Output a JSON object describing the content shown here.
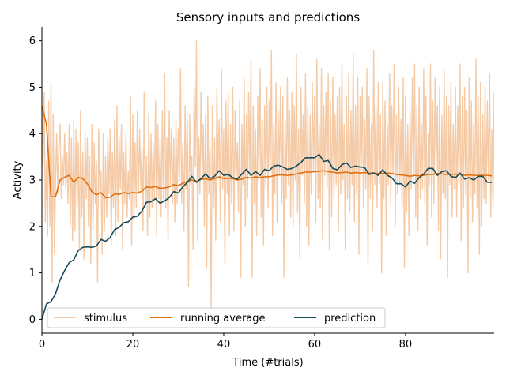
{
  "chart_data": {
    "type": "line",
    "title": "Sensory inputs and predictions",
    "xlabel": "Time (#trials)",
    "ylabel": "Activity",
    "xlim": [
      0,
      99.5
    ],
    "ylim": [
      -0.3,
      6.3
    ],
    "x_ticks": [
      0,
      20,
      40,
      60,
      80
    ],
    "y_ticks": [
      0,
      1,
      2,
      3,
      4,
      5,
      6
    ],
    "grid": false,
    "legend_position": "bottom",
    "series": [
      {
        "name": "stimulus",
        "color": "#f5cba7",
        "samples_per_trial": 4,
        "values": [
          4.6,
          3.3,
          4.9,
          2.1,
          3.4,
          1.8,
          4.7,
          2.0,
          5.1,
          0.8,
          4.4,
          1.4,
          3.0,
          4.0,
          2.7,
          3.8,
          4.2,
          2.6,
          3.5,
          2.9,
          4.0,
          2.8,
          3.6,
          2.5,
          4.2,
          2.0,
          3.9,
          1.7,
          4.3,
          1.9,
          4.1,
          2.4,
          3.8,
          1.5,
          4.5,
          2.2,
          3.6,
          1.3,
          4.0,
          2.6,
          3.9,
          2.0,
          3.5,
          1.2,
          4.2,
          1.9,
          3.8,
          2.5,
          3.4,
          0.8,
          4.1,
          2.7,
          3.2,
          1.4,
          4.0,
          1.9,
          3.5,
          2.2,
          3.9,
          2.7,
          4.1,
          1.6,
          3.6,
          2.4,
          4.3,
          1.8,
          4.6,
          2.1,
          3.9,
          2.8,
          4.2,
          1.5,
          3.6,
          2.5,
          4.0,
          2.2,
          3.2,
          2.6,
          4.8,
          1.6,
          4.4,
          2.1,
          3.8,
          2.4,
          4.5,
          2.7,
          4.1,
          2.8,
          3.7,
          1.9,
          4.9,
          2.4,
          3.5,
          1.8,
          4.4,
          2.2,
          4.0,
          2.4,
          3.8,
          2.6,
          4.7,
          1.8,
          4.2,
          2.6,
          3.9,
          2.2,
          4.5,
          2.6,
          5.3,
          2.4,
          3.9,
          1.7,
          4.5,
          2.9,
          4.1,
          2.5,
          3.9,
          2.1,
          4.3,
          2.5,
          4.1,
          3.0,
          5.4,
          2.5,
          3.8,
          1.9,
          4.6,
          2.8,
          4.3,
          0.7,
          4.4,
          2.9,
          3.5,
          1.5,
          5.0,
          3.3,
          6.0,
          1.7,
          3.9,
          2.7,
          4.9,
          3.0,
          4.2,
          2.0,
          4.4,
          1.1,
          4.8,
          2.7,
          3.7,
          0.2,
          4.6,
          2.4,
          3.9,
          1.7,
          5.0,
          3.2,
          4.3,
          2.1,
          5.4,
          2.8,
          4.1,
          1.2,
          4.7,
          2.7,
          4.9,
          1.8,
          4.2,
          2.5,
          5.0,
          1.9,
          4.5,
          3.0,
          3.8,
          2.3,
          4.7,
          0.9,
          4.2,
          2.9,
          5.2,
          2.0,
          4.4,
          2.6,
          4.9,
          3.1,
          5.6,
          0.9,
          4.6,
          2.5,
          4.1,
          1.8,
          4.8,
          3.0,
          5.4,
          2.2,
          4.3,
          1.6,
          4.6,
          2.9,
          5.0,
          2.4,
          4.7,
          3.2,
          5.8,
          1.8,
          4.2,
          2.7,
          5.1,
          2.1,
          4.5,
          3.1,
          5.0,
          2.5,
          4.8,
          0.9,
          4.3,
          2.6,
          5.2,
          2.9,
          4.5,
          2.2,
          4.9,
          2.0,
          4.6,
          3.0,
          5.7,
          2.3,
          4.1,
          1.3,
          5.0,
          3.1,
          4.4,
          2.5,
          5.3,
          2.0,
          4.6,
          1.6,
          4.4,
          2.7,
          5.1,
          3.2,
          4.8,
          2.1,
          5.6,
          2.6,
          4.2,
          2.4,
          5.4,
          1.7,
          4.6,
          3.1,
          4.9,
          2.8,
          5.3,
          1.5,
          4.7,
          2.2,
          5.2,
          2.6,
          4.4,
          2.9,
          4.8,
          1.9,
          5.0,
          2.7,
          5.5,
          3.0,
          4.2,
          1.5,
          4.8,
          2.6,
          5.3,
          2.3,
          4.5,
          2.9,
          5.7,
          2.1,
          4.6,
          2.7,
          5.2,
          1.4,
          4.8,
          3.2,
          5.0,
          2.4,
          4.3,
          2.8,
          5.4,
          1.2,
          4.8,
          2.6,
          4.2,
          1.9,
          5.8,
          2.9,
          4.6,
          2.4,
          5.1,
          2.9,
          4.4,
          1.0,
          5.1,
          2.6,
          4.7,
          1.8,
          4.2,
          2.9,
          5.3,
          2.5,
          4.6,
          3.1,
          5.5,
          2.0,
          4.4,
          2.7,
          5.0,
          2.9,
          4.3,
          2.4,
          5.2,
          1.1,
          4.8,
          2.3,
          4.2,
          1.8,
          4.5,
          2.8,
          5.2,
          3.0,
          5.5,
          2.2,
          4.6,
          1.9,
          5.0,
          2.6,
          4.2,
          2.8,
          5.4,
          2.5,
          4.8,
          1.6,
          4.0,
          2.9,
          5.5,
          2.2,
          4.7,
          2.5,
          5.2,
          3.2,
          4.6,
          1.9,
          5.0,
          1.3,
          4.4,
          2.7,
          5.4,
          2.6,
          4.8,
          0.9,
          4.6,
          2.9,
          5.1,
          2.2,
          4.2,
          2.8,
          5.0,
          2.2,
          4.6,
          2.9,
          5.5,
          1.7,
          4.8,
          2.4,
          5.0,
          2.7,
          4.5,
          1.0,
          5.2,
          2.6,
          4.7,
          2.1,
          4.2,
          2.7,
          5.6,
          2.4,
          4.8,
          1.4,
          5.1,
          2.0,
          4.4,
          2.6,
          5.0,
          2.5,
          4.7,
          3.0,
          5.3,
          2.2,
          4.1,
          2.4,
          4.9,
          1.1,
          4.7,
          2.8
        ]
      },
      {
        "name": "running average",
        "color": "#e0700f",
        "values": [
          4.6,
          4.2,
          2.64,
          2.64,
          3.0,
          3.06,
          3.1,
          2.95,
          3.06,
          3.03,
          2.92,
          2.75,
          2.68,
          2.73,
          2.62,
          2.63,
          2.7,
          2.69,
          2.73,
          2.71,
          2.73,
          2.72,
          2.76,
          2.85,
          2.84,
          2.86,
          2.82,
          2.83,
          2.85,
          2.9,
          2.88,
          2.93,
          2.97,
          3.0,
          2.97,
          3.01,
          3.03,
          3.0,
          3.03,
          3.07,
          3.03,
          3.04,
          3.03,
          3.0,
          3.02,
          3.06,
          3.04,
          3.07,
          3.05,
          3.07,
          3.07,
          3.09,
          3.11,
          3.11,
          3.1,
          3.11,
          3.13,
          3.15,
          3.17,
          3.17,
          3.18,
          3.19,
          3.2,
          3.18,
          3.17,
          3.15,
          3.16,
          3.17,
          3.15,
          3.16,
          3.15,
          3.16,
          3.15,
          3.15,
          3.14,
          3.14,
          3.15,
          3.14,
          3.12,
          3.11,
          3.1,
          3.08,
          3.1,
          3.09,
          3.1,
          3.12,
          3.12,
          3.14,
          3.13,
          3.12,
          3.12,
          3.13,
          3.12,
          3.1,
          3.11,
          3.1,
          3.1,
          3.1,
          3.1,
          3.09
        ]
      },
      {
        "name": "prediction",
        "color": "#174b5a",
        "values": [
          0.0,
          0.33,
          0.38,
          0.55,
          0.85,
          1.05,
          1.22,
          1.28,
          1.48,
          1.55,
          1.56,
          1.55,
          1.58,
          1.72,
          1.68,
          1.76,
          1.93,
          1.98,
          2.08,
          2.1,
          2.2,
          2.22,
          2.33,
          2.52,
          2.53,
          2.6,
          2.5,
          2.55,
          2.62,
          2.75,
          2.72,
          2.85,
          2.95,
          3.08,
          2.95,
          3.03,
          3.13,
          3.03,
          3.08,
          3.2,
          3.1,
          3.12,
          3.05,
          3.02,
          3.13,
          3.23,
          3.1,
          3.18,
          3.1,
          3.23,
          3.2,
          3.3,
          3.32,
          3.28,
          3.23,
          3.25,
          3.3,
          3.38,
          3.48,
          3.48,
          3.48,
          3.55,
          3.4,
          3.42,
          3.25,
          3.22,
          3.33,
          3.37,
          3.27,
          3.3,
          3.28,
          3.27,
          3.12,
          3.15,
          3.1,
          3.22,
          3.1,
          3.05,
          2.92,
          2.92,
          2.85,
          2.98,
          2.93,
          3.05,
          3.13,
          3.25,
          3.25,
          3.1,
          3.18,
          3.2,
          3.08,
          3.05,
          3.15,
          3.02,
          3.05,
          3.0,
          3.08,
          3.08,
          2.95,
          2.95
        ]
      }
    ]
  }
}
